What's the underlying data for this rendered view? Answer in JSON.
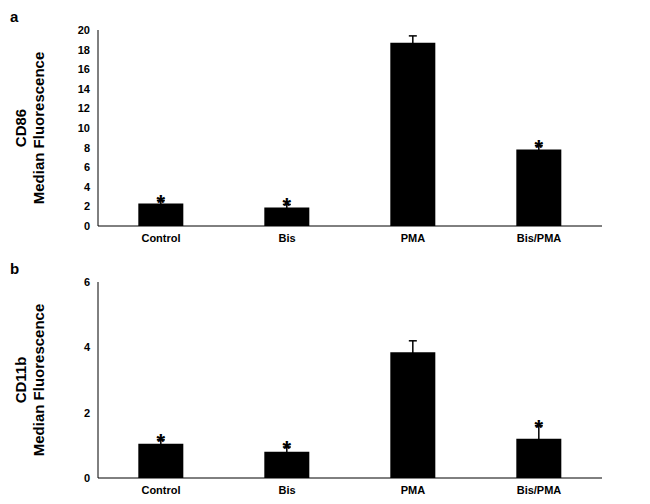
{
  "chart_data": [
    {
      "type": "bar",
      "panel": "a",
      "y_label": [
        "CD86",
        "Median Fluorescence"
      ],
      "categories": [
        "Control",
        "Bis",
        "PMA",
        "Bis/PMA"
      ],
      "values": [
        2.3,
        1.9,
        18.7,
        7.8
      ],
      "errors": [
        0.3,
        0.3,
        0.7,
        0.4
      ],
      "color": "#000000",
      "ylim": [
        0,
        20
      ],
      "yticks": [
        0,
        2,
        4,
        6,
        8,
        10,
        12,
        14,
        16,
        18,
        20
      ],
      "grid": false,
      "annotations": [
        {
          "category": "Control",
          "text": "*"
        },
        {
          "category": "Bis",
          "text": "*"
        },
        {
          "category": "Bis/PMA",
          "text": "*"
        }
      ]
    },
    {
      "type": "bar",
      "panel": "b",
      "y_label": [
        "CD11b",
        "Median Fluorescence"
      ],
      "categories": [
        "Control",
        "Bis",
        "PMA",
        "Bis/PMA"
      ],
      "values": [
        1.05,
        0.8,
        3.85,
        1.2
      ],
      "errors": [
        0.12,
        0.15,
        0.35,
        0.4
      ],
      "color": "#000000",
      "ylim": [
        0,
        6
      ],
      "yticks": [
        0,
        2,
        4,
        6
      ],
      "grid": false,
      "annotations": [
        {
          "category": "Control",
          "text": "*"
        },
        {
          "category": "Bis",
          "text": "*"
        },
        {
          "category": "Bis/PMA",
          "text": "*"
        }
      ]
    }
  ]
}
